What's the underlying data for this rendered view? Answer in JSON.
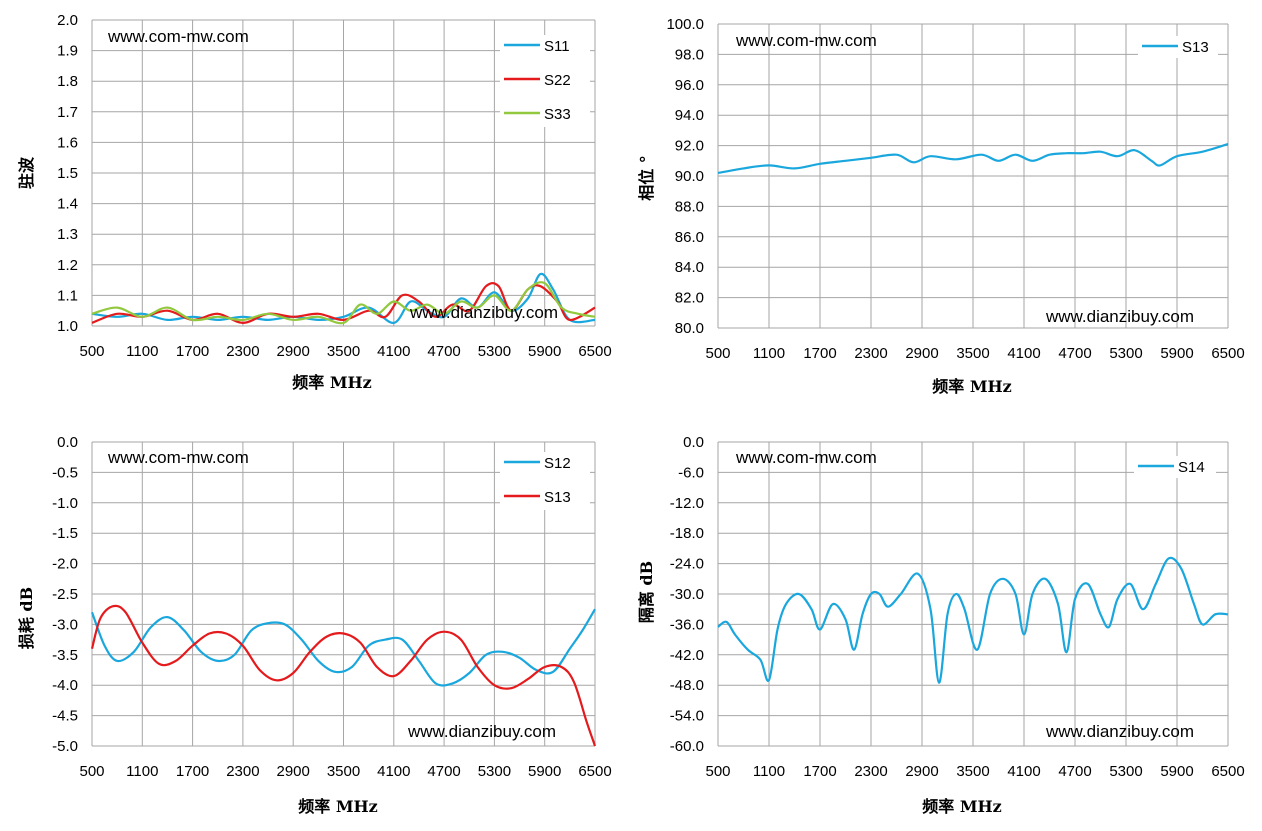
{
  "chart_data": [
    {
      "type": "line",
      "ylabel": "驻波",
      "xlabel": "频率  MHz",
      "xlim": [
        500,
        6500
      ],
      "ylim": [
        1.0,
        2.0
      ],
      "xticks": [
        "500",
        "1100",
        "1700",
        "2300",
        "2900",
        "3500",
        "4100",
        "4700",
        "5300",
        "5900",
        "6500"
      ],
      "yticks": [
        "2.0",
        "1.9",
        "1.8",
        "1.7",
        "1.6",
        "1.5",
        "1.4",
        "1.3",
        "1.2",
        "1.1",
        "1.0"
      ],
      "watermark_top": "www.com-mw.com",
      "watermark_bottom": "www.dianzibuy.com",
      "grid": true,
      "legend": "top-right",
      "series": [
        {
          "name": "S11",
          "color": "#1aa7dd",
          "x": [
            500,
            800,
            1100,
            1400,
            1700,
            2000,
            2300,
            2600,
            2900,
            3200,
            3500,
            3800,
            4100,
            4300,
            4500,
            4700,
            4900,
            5100,
            5300,
            5500,
            5700,
            5850,
            6000,
            6200,
            6500
          ],
          "values": [
            1.04,
            1.03,
            1.04,
            1.02,
            1.03,
            1.02,
            1.03,
            1.02,
            1.03,
            1.02,
            1.03,
            1.06,
            1.01,
            1.08,
            1.05,
            1.03,
            1.09,
            1.06,
            1.11,
            1.05,
            1.09,
            1.17,
            1.12,
            1.02,
            1.02
          ]
        },
        {
          "name": "S22",
          "color": "#e41a1c",
          "x": [
            500,
            800,
            1100,
            1400,
            1700,
            2000,
            2300,
            2600,
            2900,
            3200,
            3500,
            3800,
            4000,
            4200,
            4400,
            4600,
            4800,
            5000,
            5200,
            5350,
            5500,
            5700,
            5850,
            6050,
            6200,
            6500
          ],
          "values": [
            1.01,
            1.04,
            1.03,
            1.05,
            1.02,
            1.04,
            1.01,
            1.04,
            1.03,
            1.04,
            1.02,
            1.05,
            1.03,
            1.1,
            1.08,
            1.03,
            1.07,
            1.05,
            1.13,
            1.13,
            1.05,
            1.12,
            1.13,
            1.08,
            1.02,
            1.06
          ]
        },
        {
          "name": "S33",
          "color": "#92c83e",
          "x": [
            500,
            800,
            1100,
            1400,
            1700,
            2000,
            2300,
            2600,
            2900,
            3200,
            3500,
            3700,
            3900,
            4100,
            4300,
            4500,
            4700,
            4900,
            5100,
            5300,
            5500,
            5700,
            5900,
            6100,
            6300,
            6500
          ],
          "values": [
            1.04,
            1.06,
            1.03,
            1.06,
            1.02,
            1.03,
            1.02,
            1.04,
            1.02,
            1.03,
            1.01,
            1.07,
            1.04,
            1.08,
            1.05,
            1.07,
            1.04,
            1.08,
            1.06,
            1.1,
            1.05,
            1.12,
            1.14,
            1.06,
            1.04,
            1.03
          ]
        }
      ]
    },
    {
      "type": "line",
      "ylabel": "相位 °",
      "xlabel": "频率  MHz",
      "xlim": [
        500,
        6500
      ],
      "ylim": [
        80.0,
        100.0
      ],
      "xticks": [
        "500",
        "1100",
        "1700",
        "2300",
        "2900",
        "3500",
        "4100",
        "4700",
        "5300",
        "5900",
        "6500"
      ],
      "yticks": [
        "100.0",
        "98.0",
        "96.0",
        "94.0",
        "92.0",
        "90.0",
        "88.0",
        "86.0",
        "84.0",
        "82.0",
        "80.0"
      ],
      "watermark_top": "www.com-mw.com",
      "watermark_bottom": "www.dianzibuy.com",
      "grid": true,
      "legend": "top-right",
      "series": [
        {
          "name": "S13",
          "color": "#1aa7dd",
          "x": [
            500,
            800,
            1100,
            1400,
            1700,
            2000,
            2300,
            2600,
            2800,
            3000,
            3300,
            3600,
            3800,
            4000,
            4200,
            4400,
            4600,
            4800,
            5000,
            5200,
            5400,
            5600,
            5700,
            5900,
            6200,
            6500
          ],
          "values": [
            90.2,
            90.5,
            90.7,
            90.5,
            90.8,
            91.0,
            91.2,
            91.4,
            90.9,
            91.3,
            91.1,
            91.4,
            91.0,
            91.4,
            91.0,
            91.4,
            91.5,
            91.5,
            91.6,
            91.3,
            91.7,
            91.0,
            90.7,
            91.3,
            91.6,
            92.1
          ]
        }
      ]
    },
    {
      "type": "line",
      "ylabel": "损耗 dB",
      "xlabel": "频率  MHz",
      "xlim": [
        500,
        6500
      ],
      "ylim": [
        -5.0,
        0.0
      ],
      "xticks": [
        "500",
        "1100",
        "1700",
        "2300",
        "2900",
        "3500",
        "4100",
        "4700",
        "5300",
        "5900",
        "6500"
      ],
      "yticks": [
        "0.0",
        "-0.5",
        "-1.0",
        "-1.5",
        "-2.0",
        "-2.5",
        "-3.0",
        "-3.5",
        "-4.0",
        "-4.5",
        "-5.0"
      ],
      "watermark_top": "www.com-mw.com",
      "watermark_bottom": "www.dianzibuy.com",
      "grid": true,
      "legend": "top-right",
      "series": [
        {
          "name": "S12",
          "color": "#1aa7dd",
          "x": [
            500,
            650,
            800,
            1000,
            1200,
            1400,
            1600,
            1800,
            2000,
            2200,
            2400,
            2600,
            2800,
            3000,
            3200,
            3400,
            3600,
            3800,
            4000,
            4200,
            4400,
            4600,
            4800,
            5000,
            5200,
            5400,
            5600,
            5800,
            6000,
            6200,
            6350,
            6500
          ],
          "values": [
            -2.8,
            -3.35,
            -3.6,
            -3.45,
            -3.05,
            -2.88,
            -3.1,
            -3.45,
            -3.6,
            -3.5,
            -3.1,
            -2.98,
            -3.0,
            -3.25,
            -3.6,
            -3.78,
            -3.7,
            -3.35,
            -3.25,
            -3.25,
            -3.6,
            -3.97,
            -3.97,
            -3.8,
            -3.5,
            -3.45,
            -3.55,
            -3.75,
            -3.78,
            -3.4,
            -3.1,
            -2.75
          ]
        },
        {
          "name": "S13",
          "color": "#e41a1c",
          "x": [
            500,
            600,
            750,
            900,
            1100,
            1300,
            1500,
            1700,
            1900,
            2100,
            2300,
            2500,
            2700,
            2900,
            3100,
            3300,
            3500,
            3700,
            3900,
            4100,
            4300,
            4500,
            4700,
            4900,
            5100,
            5300,
            5500,
            5700,
            5900,
            6100,
            6250,
            6400,
            6500
          ],
          "values": [
            -3.4,
            -2.9,
            -2.7,
            -2.8,
            -3.3,
            -3.65,
            -3.6,
            -3.35,
            -3.15,
            -3.15,
            -3.35,
            -3.75,
            -3.92,
            -3.8,
            -3.45,
            -3.2,
            -3.15,
            -3.3,
            -3.7,
            -3.85,
            -3.6,
            -3.25,
            -3.12,
            -3.25,
            -3.7,
            -4.0,
            -4.05,
            -3.9,
            -3.7,
            -3.7,
            -3.95,
            -4.6,
            -5.0
          ]
        }
      ]
    },
    {
      "type": "line",
      "ylabel": "隔离 dB",
      "xlabel": "频率  MHz",
      "xlim": [
        500,
        6500
      ],
      "ylim": [
        -60.0,
        0.0
      ],
      "xticks": [
        "500",
        "1100",
        "1700",
        "2300",
        "2900",
        "3500",
        "4100",
        "4700",
        "5300",
        "5900",
        "6500"
      ],
      "yticks": [
        "0.0",
        "-6.0",
        "-12.0",
        "-18.0",
        "-24.0",
        "-30.0",
        "-36.0",
        "-42.0",
        "-48.0",
        "-54.0",
        "-60.0"
      ],
      "watermark_top": "www.com-mw.com",
      "watermark_bottom": "www.dianzibuy.com",
      "grid": true,
      "legend": "top-right",
      "series": [
        {
          "name": "S14",
          "color": "#1aa7dd",
          "x": [
            500,
            600,
            700,
            850,
            1000,
            1100,
            1200,
            1300,
            1450,
            1600,
            1700,
            1850,
            2000,
            2100,
            2200,
            2300,
            2400,
            2500,
            2650,
            2850,
            3000,
            3100,
            3200,
            3300,
            3400,
            3550,
            3700,
            3850,
            4000,
            4100,
            4200,
            4350,
            4500,
            4600,
            4700,
            4850,
            5000,
            5100,
            5200,
            5350,
            5500,
            5650,
            5800,
            5950,
            6100,
            6200,
            6350,
            6500
          ],
          "values": [
            -36.5,
            -35.5,
            -38,
            -41,
            -43,
            -47,
            -37,
            -32,
            -30,
            -33,
            -37,
            -32,
            -35,
            -41,
            -34,
            -30,
            -30,
            -32.5,
            -30,
            -26,
            -33,
            -47.5,
            -34,
            -30,
            -33,
            -41,
            -30,
            -27,
            -30,
            -38,
            -30,
            -27,
            -32,
            -41.5,
            -31,
            -28,
            -34,
            -36.5,
            -31,
            -28,
            -33,
            -28,
            -23,
            -25,
            -32,
            -36,
            -34,
            -34
          ]
        }
      ]
    }
  ]
}
